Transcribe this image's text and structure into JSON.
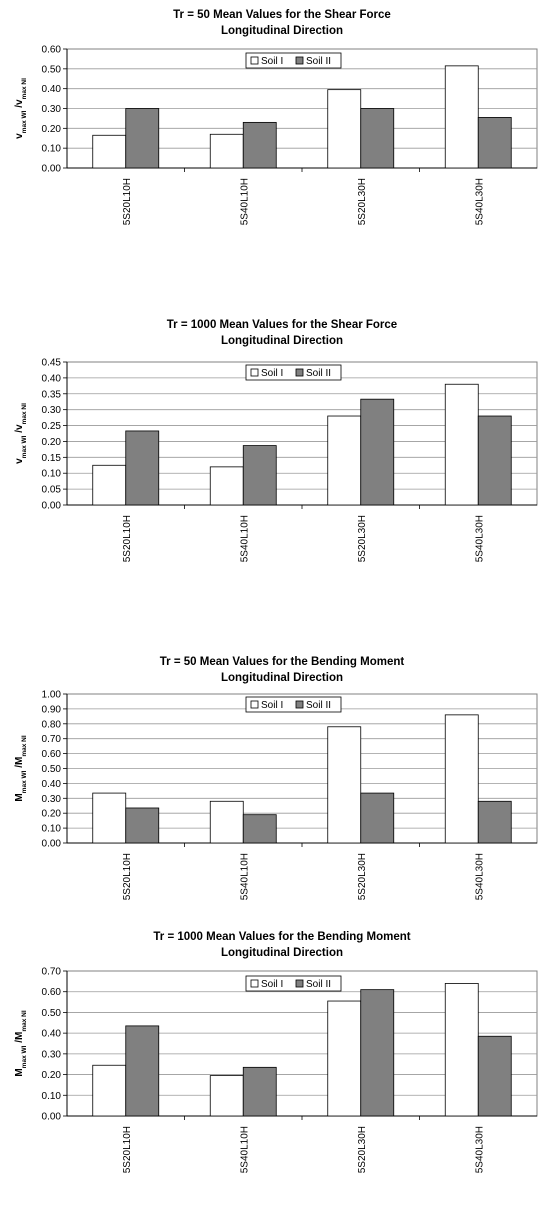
{
  "chart_data": [
    {
      "type": "bar",
      "title_line1": "Tr = 50 Mean Values for the Shear Force",
      "title_line2": "Longitudinal Direction",
      "ylabel": {
        "main1": "v",
        "sub1": "max WI",
        "main2": " /v",
        "sub2": "max NI"
      },
      "categories": [
        "5S20L10H",
        "5S40L10H",
        "5S20L30H",
        "5S40L30H"
      ],
      "series": [
        {
          "name": "Soil I",
          "color": "#ffffff",
          "values": [
            0.165,
            0.17,
            0.395,
            0.515
          ]
        },
        {
          "name": "Soil II",
          "color": "#808080",
          "values": [
            0.3,
            0.23,
            0.3,
            0.255
          ]
        }
      ],
      "ylim": [
        0,
        0.6
      ],
      "yticks": [
        "0.00",
        "0.10",
        "0.20",
        "0.30",
        "0.40",
        "0.50",
        "0.60"
      ],
      "grid": true,
      "legend": "top-center"
    },
    {
      "type": "bar",
      "title_line1": "Tr = 1000 Mean Values for the Shear Force",
      "title_line2": "Longitudinal Direction",
      "ylabel": {
        "main1": "v",
        "sub1": "max WI",
        "main2": " /v",
        "sub2": "max NI"
      },
      "categories": [
        "5S20L10H",
        "5S40L10H",
        "5S20L30H",
        "5S40L30H"
      ],
      "series": [
        {
          "name": "Soil I",
          "color": "#ffffff",
          "values": [
            0.125,
            0.12,
            0.28,
            0.38
          ]
        },
        {
          "name": "Soil II",
          "color": "#808080",
          "values": [
            0.233,
            0.187,
            0.333,
            0.28
          ]
        }
      ],
      "ylim": [
        0,
        0.45
      ],
      "yticks": [
        "0.00",
        "0.05",
        "0.10",
        "0.15",
        "0.20",
        "0.25",
        "0.30",
        "0.35",
        "0.40",
        "0.45"
      ],
      "grid": true,
      "legend": "top-center"
    },
    {
      "type": "bar",
      "title_line1": "Tr = 50 Mean Values for the Bending Moment",
      "title_line2": "Longitudinal Direction",
      "ylabel": {
        "main1": "M",
        "sub1": "max WI",
        "main2": " /M",
        "sub2": "max NI"
      },
      "categories": [
        "5S20L10H",
        "5S40L10H",
        "5S20L30H",
        "5S40L30H"
      ],
      "series": [
        {
          "name": "Soil I",
          "color": "#ffffff",
          "values": [
            0.335,
            0.28,
            0.78,
            0.86
          ]
        },
        {
          "name": "Soil II",
          "color": "#808080",
          "values": [
            0.235,
            0.19,
            0.335,
            0.28
          ]
        }
      ],
      "ylim": [
        0,
        1.0
      ],
      "yticks": [
        "0.00",
        "0.10",
        "0.20",
        "0.30",
        "0.40",
        "0.50",
        "0.60",
        "0.70",
        "0.80",
        "0.90",
        "1.00"
      ],
      "grid": true,
      "legend": "top-center"
    },
    {
      "type": "bar",
      "title_line1": "Tr = 1000 Mean Values for the Bending Moment",
      "title_line2": "Longitudinal Direction",
      "ylabel": {
        "main1": "M",
        "sub1": "max WI",
        "main2": " /M",
        "sub2": "max NI"
      },
      "categories": [
        "5S20L10H",
        "5S40L10H",
        "5S20L30H",
        "5S40L30H"
      ],
      "series": [
        {
          "name": "Soil I",
          "color": "#ffffff",
          "values": [
            0.245,
            0.195,
            0.555,
            0.64
          ]
        },
        {
          "name": "Soil II",
          "color": "#808080",
          "values": [
            0.435,
            0.235,
            0.61,
            0.385
          ]
        }
      ],
      "ylim": [
        0,
        0.7
      ],
      "yticks": [
        "0.00",
        "0.10",
        "0.20",
        "0.30",
        "0.40",
        "0.50",
        "0.60",
        "0.70"
      ],
      "grid": true,
      "legend": "top-center"
    }
  ]
}
